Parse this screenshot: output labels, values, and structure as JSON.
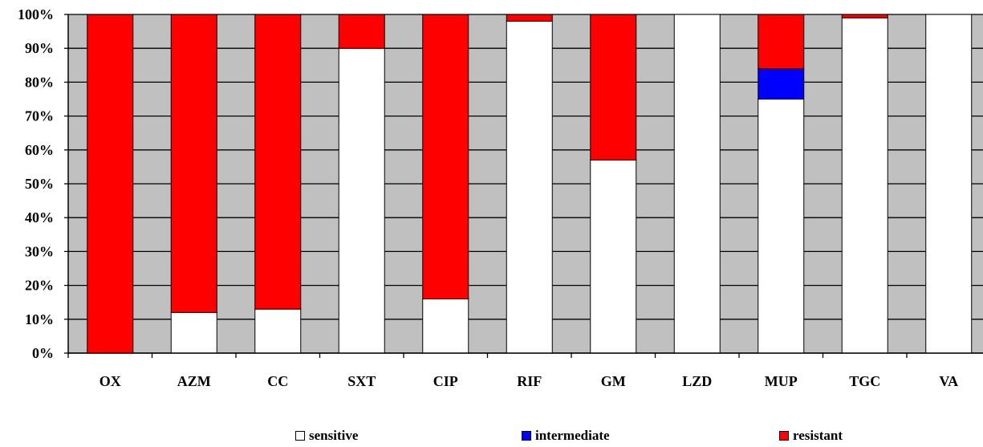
{
  "chart_data": {
    "type": "bar",
    "stacked": true,
    "normalized_percent": true,
    "categories": [
      "OX",
      "AZM",
      "CC",
      "SXT",
      "CIP",
      "RIF",
      "GM",
      "LZD",
      "MUP",
      "TGC",
      "VA"
    ],
    "series": [
      {
        "name": "sensitive",
        "color": "#ffffff",
        "values": [
          0,
          12,
          13,
          90,
          16,
          98,
          57,
          100,
          75,
          99,
          100
        ]
      },
      {
        "name": "intermediate",
        "color": "#0000ff",
        "values": [
          0,
          0,
          0,
          0,
          0,
          0,
          0,
          0,
          9,
          0,
          0
        ]
      },
      {
        "name": "resistant",
        "color": "#ff0000",
        "values": [
          100,
          88,
          87,
          10,
          84,
          2,
          43,
          0,
          16,
          1,
          0
        ]
      }
    ],
    "y_ticks": [
      "0%",
      "10%",
      "20%",
      "30%",
      "40%",
      "50%",
      "60%",
      "70%",
      "80%",
      "90%",
      "100%"
    ],
    "ylim": [
      0,
      100
    ],
    "title": "",
    "xlabel": "",
    "ylabel": "",
    "grid": true,
    "plot_background": "#c0c0c0",
    "legend_position": "bottom"
  }
}
